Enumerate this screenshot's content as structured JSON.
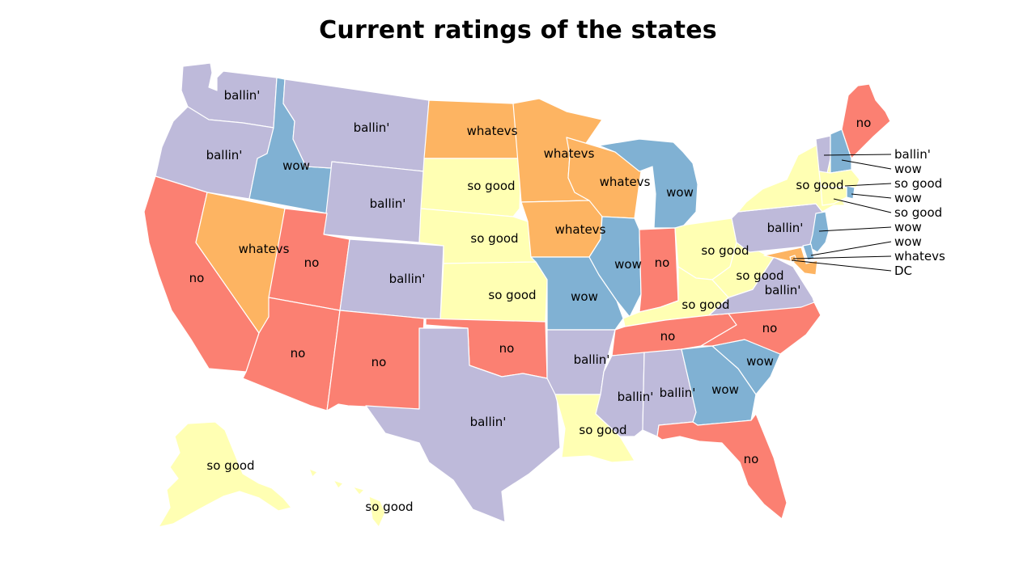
{
  "title": "Current ratings of the states",
  "palette": {
    "ballin'": "#bebada",
    "wow": "#80b1d3",
    "so good": "#ffffb3",
    "whatevs": "#fdb462",
    "no": "#fb8072"
  },
  "states": [
    {
      "code": "WA",
      "rating": "ballin'"
    },
    {
      "code": "OR",
      "rating": "ballin'"
    },
    {
      "code": "ID",
      "rating": "wow"
    },
    {
      "code": "MT",
      "rating": "ballin'"
    },
    {
      "code": "WY",
      "rating": "ballin'"
    },
    {
      "code": "CA",
      "rating": "no"
    },
    {
      "code": "NV",
      "rating": "whatevs"
    },
    {
      "code": "UT",
      "rating": "no"
    },
    {
      "code": "CO",
      "rating": "ballin'"
    },
    {
      "code": "AZ",
      "rating": "no"
    },
    {
      "code": "NM",
      "rating": "no"
    },
    {
      "code": "ND",
      "rating": "whatevs"
    },
    {
      "code": "SD",
      "rating": "so good"
    },
    {
      "code": "NE",
      "rating": "so good"
    },
    {
      "code": "KS",
      "rating": "so good"
    },
    {
      "code": "OK",
      "rating": "no"
    },
    {
      "code": "TX",
      "rating": "ballin'"
    },
    {
      "code": "MN",
      "rating": "whatevs"
    },
    {
      "code": "IA",
      "rating": "whatevs"
    },
    {
      "code": "MO",
      "rating": "wow"
    },
    {
      "code": "AR",
      "rating": "ballin'"
    },
    {
      "code": "LA",
      "rating": "so good"
    },
    {
      "code": "WI",
      "rating": "whatevs"
    },
    {
      "code": "IL",
      "rating": "wow"
    },
    {
      "code": "MI",
      "rating": "wow"
    },
    {
      "code": "IN",
      "rating": "no"
    },
    {
      "code": "OH",
      "rating": "so good"
    },
    {
      "code": "KY",
      "rating": "so good"
    },
    {
      "code": "TN",
      "rating": "no"
    },
    {
      "code": "MS",
      "rating": "ballin'"
    },
    {
      "code": "AL",
      "rating": "ballin'"
    },
    {
      "code": "GA",
      "rating": "wow"
    },
    {
      "code": "FL",
      "rating": "no"
    },
    {
      "code": "SC",
      "rating": "wow"
    },
    {
      "code": "NC",
      "rating": "no"
    },
    {
      "code": "VA",
      "rating": "ballin'"
    },
    {
      "code": "WV",
      "rating": "so good"
    },
    {
      "code": "PA",
      "rating": "ballin'"
    },
    {
      "code": "NY",
      "rating": "so good"
    },
    {
      "code": "VT",
      "rating": "ballin'"
    },
    {
      "code": "NH",
      "rating": "wow"
    },
    {
      "code": "ME",
      "rating": "no"
    },
    {
      "code": "MA",
      "rating": "so good"
    },
    {
      "code": "RI",
      "rating": "wow"
    },
    {
      "code": "CT",
      "rating": "so good"
    },
    {
      "code": "NJ",
      "rating": "wow"
    },
    {
      "code": "DE",
      "rating": "wow"
    },
    {
      "code": "MD",
      "rating": "whatevs"
    },
    {
      "code": "DC",
      "rating": "whatevs"
    },
    {
      "code": "AK",
      "rating": "so good"
    },
    {
      "code": "HI",
      "rating": "so good"
    }
  ],
  "callouts": [
    {
      "code": "VT",
      "text": "ballin'"
    },
    {
      "code": "NH",
      "text": "wow"
    },
    {
      "code": "MA",
      "text": "so good"
    },
    {
      "code": "RI",
      "text": "wow"
    },
    {
      "code": "CT",
      "text": "so good"
    },
    {
      "code": "NJ",
      "text": "wow"
    },
    {
      "code": "DE",
      "text": "wow"
    },
    {
      "code": "MD",
      "text": "whatevs"
    },
    {
      "code": "DC",
      "text": "DC"
    }
  ]
}
